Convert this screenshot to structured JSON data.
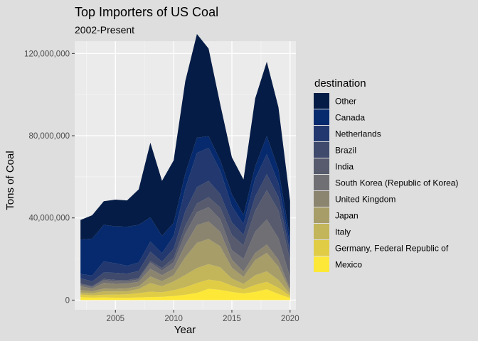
{
  "chart_data": {
    "type": "area",
    "stacked": true,
    "title": "Top Importers of US Coal",
    "subtitle": "2002-Present",
    "xlabel": "Year",
    "ylabel": "Tons of Coal",
    "xlim": [
      2001.5,
      2020.5
    ],
    "ylim": [
      -4700000,
      126000000
    ],
    "xticks": [
      2005,
      2010,
      2015,
      2020
    ],
    "xtick_labels": [
      "2005",
      "2010",
      "2015",
      "2020"
    ],
    "yticks": [
      0,
      40000000,
      80000000,
      120000000
    ],
    "ytick_labels": [
      "0",
      "40,000,000",
      "80,000,000",
      "120,000,000"
    ],
    "grid": true,
    "panel_background": "#ebebeb",
    "legend": {
      "title": "destination",
      "placement": "right"
    },
    "x": [
      2002,
      2003,
      2004,
      2005,
      2006,
      2007,
      2008,
      2009,
      2010,
      2011,
      2012,
      2013,
      2014,
      2015,
      2016,
      2017,
      2018,
      2019,
      2020
    ],
    "series": [
      {
        "name": "Mexico",
        "color": "#fde838",
        "values": [
          1500000,
          1200000,
          1300000,
          1200000,
          1100000,
          1300000,
          1500000,
          1600000,
          2000000,
          2600000,
          3500000,
          5500000,
          5000000,
          4000000,
          3200000,
          4000000,
          5300000,
          3000000,
          1000000
        ]
      },
      {
        "name": "Germany, Federal Republic of",
        "color": "#e1cd45",
        "values": [
          1200000,
          1100000,
          1300000,
          1500000,
          1700000,
          2100000,
          2600000,
          2200000,
          2800000,
          3700000,
          4800000,
          4500000,
          4200000,
          3000000,
          2100000,
          3400000,
          3600000,
          3000000,
          1000000
        ]
      },
      {
        "name": "Italy",
        "color": "#c3b55a",
        "values": [
          1000000,
          1000000,
          1700000,
          1500000,
          1500000,
          2000000,
          4200000,
          3000000,
          4300000,
          6000000,
          7300000,
          7500000,
          6800000,
          3500000,
          2600000,
          4700000,
          5100000,
          3800000,
          1000000
        ]
      },
      {
        "name": "Japan",
        "color": "#a69d69",
        "values": [
          1200000,
          1000000,
          1300000,
          1300000,
          1400000,
          1300000,
          3200000,
          2400000,
          3000000,
          8600000,
          12300000,
          12300000,
          10200000,
          5300000,
          3400000,
          7400000,
          9000000,
          6400000,
          1500000
        ]
      },
      {
        "name": "United Kingdom",
        "color": "#8b8570",
        "values": [
          1800000,
          1300000,
          2800000,
          2400000,
          2300000,
          2200000,
          3700000,
          2900000,
          3200000,
          6000000,
          8600000,
          8500000,
          7000000,
          3900000,
          2600000,
          3400000,
          4100000,
          3400000,
          1000000
        ]
      },
      {
        "name": "South Korea (Republic of Korea)",
        "color": "#706f73",
        "values": [
          900000,
          800000,
          1300000,
          1300000,
          1100000,
          1200000,
          3000000,
          2300000,
          3100000,
          5500000,
          6300000,
          6900000,
          6200000,
          4600000,
          6200000,
          10400000,
          12200000,
          10500000,
          5700000
        ]
      },
      {
        "name": "India",
        "color": "#575b6d",
        "values": [
          500000,
          400000,
          600000,
          600000,
          600000,
          700000,
          800000,
          1200000,
          2000000,
          3700000,
          4200000,
          4900000,
          5700000,
          7400000,
          6500000,
          10200000,
          14200000,
          13500000,
          8000000
        ]
      },
      {
        "name": "Brazil",
        "color": "#3f4a6c",
        "values": [
          2500000,
          2300000,
          3100000,
          3500000,
          3200000,
          3400000,
          4600000,
          3100000,
          4600000,
          7200000,
          8000000,
          7900000,
          6500000,
          6200000,
          5200000,
          6900000,
          7800000,
          6600000,
          3900000
        ]
      },
      {
        "name": "Netherlands",
        "color": "#22386f",
        "values": [
          2100000,
          2800000,
          5400000,
          4600000,
          3800000,
          4100000,
          4900000,
          4100000,
          6200000,
          11000000,
          16600000,
          16100000,
          11500000,
          7900000,
          5300000,
          8700000,
          9700000,
          6800000,
          3300000
        ]
      },
      {
        "name": "Canada",
        "color": "#062a6d",
        "values": [
          16800000,
          18000000,
          17800000,
          18000000,
          19000000,
          18300000,
          11800000,
          8400000,
          6400000,
          7300000,
          7400000,
          5700000,
          4900000,
          5700000,
          4300000,
          5900000,
          8900000,
          6500000,
          3700000
        ]
      },
      {
        "name": "Other",
        "color": "#051c46",
        "values": [
          9500000,
          11400000,
          11500000,
          13000000,
          12800000,
          17300000,
          36300000,
          26800000,
          30400000,
          45000000,
          50500000,
          42600000,
          27300000,
          18000000,
          17300000,
          33100000,
          36100000,
          30400000,
          18200000
        ]
      }
    ]
  }
}
